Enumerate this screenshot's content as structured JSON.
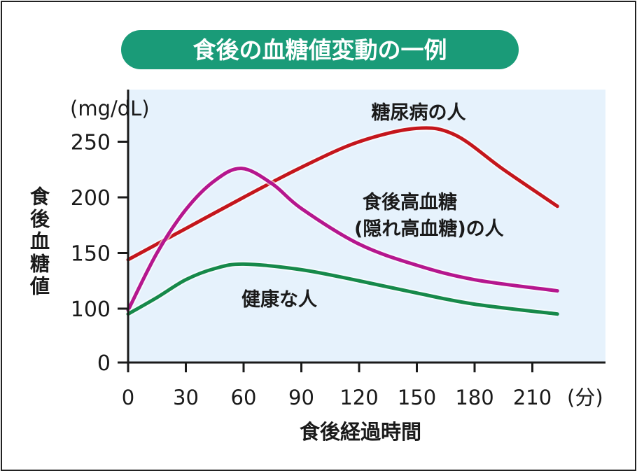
{
  "chart_data": {
    "type": "line",
    "title": "食後の血糖値変動の一例",
    "xlabel": "食後経過時間",
    "x_unit": "(分)",
    "ylabel": "食後血糖値",
    "y_unit": "(mg/dL)",
    "x_ticks": [
      "0",
      "30",
      "60",
      "90",
      "120",
      "150",
      "180",
      "210"
    ],
    "y_ticks": [
      "0",
      "100",
      "150",
      "200",
      "250"
    ],
    "xlim": [
      0,
      245
    ],
    "ylim": [
      0,
      275
    ],
    "y_axis_break": "between 0 and 100",
    "grid": false,
    "background": "#e6f2fc",
    "title_color": "#1a9b78",
    "series": [
      {
        "name": "糖尿病の人",
        "color": "#c4161c",
        "x": [
          0,
          30,
          60,
          90,
          120,
          150,
          170,
          195,
          223
        ],
        "y": [
          144,
          172,
          200,
          227,
          250,
          262,
          256,
          225,
          192
        ]
      },
      {
        "name_lines": [
          "食後高血糖",
          "(隠れ高血糖)の人"
        ],
        "name": "食後高血糖(隠れ高血糖)の人",
        "color": "#b5178e",
        "x": [
          0,
          15,
          30,
          45,
          59,
          75,
          90,
          120,
          150,
          180,
          223
        ],
        "y": [
          97,
          150,
          189,
          215,
          226,
          212,
          190,
          158,
          139,
          126,
          116
        ]
      },
      {
        "name": "健康な人",
        "color": "#16894a",
        "x": [
          0,
          15,
          30,
          45,
          60,
          90,
          120,
          150,
          180,
          223
        ],
        "y": [
          90,
          110,
          126,
          136,
          140,
          135,
          125,
          114,
          104,
          90
        ]
      }
    ]
  }
}
